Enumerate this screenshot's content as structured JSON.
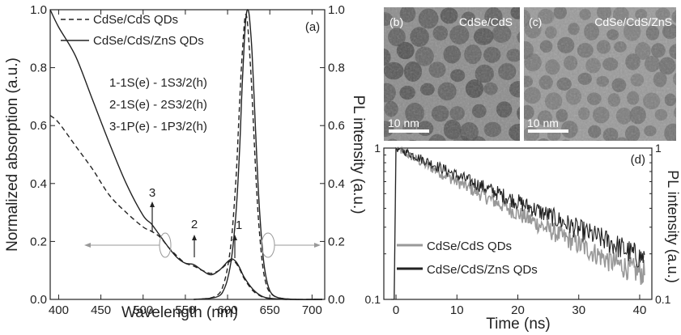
{
  "chart_data": [
    {
      "panel": "(a)",
      "type": "line",
      "xlabel": "Wavelength (nm)",
      "ylabel": "Normalized absorption (a.u.)",
      "y2label": "PL intensity (a.u.)",
      "xlim": [
        390,
        715
      ],
      "ylim": [
        0,
        1.0
      ],
      "y2lim": [
        0,
        1.0
      ],
      "xticks": [
        400,
        450,
        500,
        550,
        600,
        650,
        700
      ],
      "yticks": [
        0.0,
        0.2,
        0.4,
        0.6,
        0.8,
        1.0
      ],
      "y2ticks": [
        0.0,
        0.2,
        0.4,
        0.6,
        0.8,
        1.0
      ],
      "legend": [
        {
          "label": "CdSe/CdS QDs",
          "style": "dashed"
        },
        {
          "label": "CdSe/CdS/ZnS QDs",
          "style": "solid"
        }
      ],
      "transitions": [
        "1-1S(e) - 1S3/2(h)",
        "2-1S(e) - 2S3/2(h)",
        "3-1P(e) - 1P3/2(h)"
      ],
      "markers": [
        {
          "text": "1",
          "x": 608,
          "y": 0.2
        },
        {
          "text": "2",
          "x": 560,
          "y": 0.19
        },
        {
          "text": "3",
          "x": 524,
          "y": 0.3
        }
      ],
      "series": [
        {
          "name": "CdSe/CdS QDs",
          "kind": "absorption",
          "style": "dashed",
          "color": "#222222",
          "x": [
            390,
            400,
            420,
            440,
            460,
            480,
            500,
            510,
            520,
            530,
            540,
            550,
            560,
            570,
            580,
            590,
            600,
            605,
            610,
            615,
            620,
            630,
            640,
            650,
            670,
            700,
            712
          ],
          "y": [
            0.635,
            0.61,
            0.53,
            0.45,
            0.36,
            0.3,
            0.25,
            0.235,
            0.215,
            0.18,
            0.15,
            0.125,
            0.115,
            0.1,
            0.09,
            0.1,
            0.125,
            0.135,
            0.125,
            0.1,
            0.07,
            0.03,
            0.01,
            0.003,
            0.0,
            0.0,
            0.0
          ]
        },
        {
          "name": "CdSe/CdS/ZnS QDs",
          "kind": "absorption",
          "style": "solid",
          "color": "#222222",
          "x": [
            390,
            400,
            420,
            440,
            460,
            480,
            500,
            510,
            520,
            530,
            540,
            550,
            560,
            570,
            580,
            590,
            600,
            605,
            610,
            615,
            620,
            630,
            640,
            650,
            670,
            700,
            712
          ],
          "y": [
            1.0,
            0.94,
            0.84,
            0.69,
            0.54,
            0.4,
            0.29,
            0.26,
            0.22,
            0.18,
            0.145,
            0.125,
            0.12,
            0.1,
            0.085,
            0.1,
            0.13,
            0.14,
            0.13,
            0.105,
            0.075,
            0.035,
            0.012,
            0.004,
            0.0,
            0.0,
            0.0
          ]
        },
        {
          "name": "CdSe/CdS QDs",
          "kind": "PL",
          "style": "dashed",
          "color": "#222222",
          "x": [
            560,
            580,
            590,
            595,
            600,
            605,
            610,
            613,
            616,
            619,
            621,
            623,
            625,
            628,
            631,
            634,
            637,
            641,
            645,
            650,
            660,
            680,
            712
          ],
          "y": [
            0.0,
            0.005,
            0.02,
            0.05,
            0.11,
            0.22,
            0.42,
            0.6,
            0.78,
            0.92,
            0.98,
            0.97,
            0.9,
            0.76,
            0.58,
            0.4,
            0.26,
            0.13,
            0.06,
            0.025,
            0.006,
            0.0,
            0.0
          ]
        },
        {
          "name": "CdSe/CdS/ZnS QDs",
          "kind": "PL",
          "style": "solid",
          "color": "#222222",
          "x": [
            560,
            580,
            590,
            595,
            600,
            605,
            610,
            614,
            617,
            620,
            622,
            624,
            626,
            629,
            632,
            635,
            638,
            642,
            646,
            651,
            660,
            680,
            712
          ],
          "y": [
            0.0,
            0.004,
            0.012,
            0.03,
            0.07,
            0.15,
            0.3,
            0.5,
            0.72,
            0.9,
            0.98,
            1.0,
            0.97,
            0.85,
            0.66,
            0.46,
            0.3,
            0.15,
            0.07,
            0.025,
            0.006,
            0.0,
            0.0
          ]
        }
      ]
    },
    {
      "panel": "(d)",
      "type": "line",
      "xlabel": "Time (ns)",
      "ylabel": "PL intensity (a.u.)",
      "yscale": "log",
      "xlim": [
        -2,
        42
      ],
      "ylim": [
        0.1,
        1
      ],
      "xticks": [
        0,
        10,
        20,
        30,
        40
      ],
      "yticks": [
        0.1,
        1
      ],
      "legend": [
        {
          "label": "CdSe/CdS QDs",
          "color": "#999999"
        },
        {
          "label": "CdSe/CdS/ZnS QDs",
          "color": "#222222"
        }
      ],
      "series": [
        {
          "name": "CdSe/CdS QDs",
          "color": "#999999",
          "x": [
            -0.8,
            -0.3,
            0,
            2,
            5,
            10,
            15,
            20,
            25,
            30,
            35,
            40
          ],
          "y": [
            0.1,
            0.1,
            1.0,
            0.9,
            0.77,
            0.6,
            0.47,
            0.37,
            0.29,
            0.23,
            0.18,
            0.15
          ]
        },
        {
          "name": "CdSe/CdS/ZnS QDs",
          "color": "#222222",
          "x": [
            -0.8,
            -0.3,
            0,
            2,
            5,
            10,
            15,
            20,
            25,
            30,
            35,
            40
          ],
          "y": [
            0.1,
            0.1,
            1.0,
            0.93,
            0.82,
            0.66,
            0.54,
            0.44,
            0.36,
            0.29,
            0.24,
            0.19
          ]
        }
      ]
    }
  ],
  "tem_panels": [
    {
      "panel": "(b)",
      "label": "CdSe/CdS",
      "scale_bar": "10 nm"
    },
    {
      "panel": "(c)",
      "label": "CdSe/CdS/ZnS",
      "scale_bar": "10 nm"
    }
  ]
}
